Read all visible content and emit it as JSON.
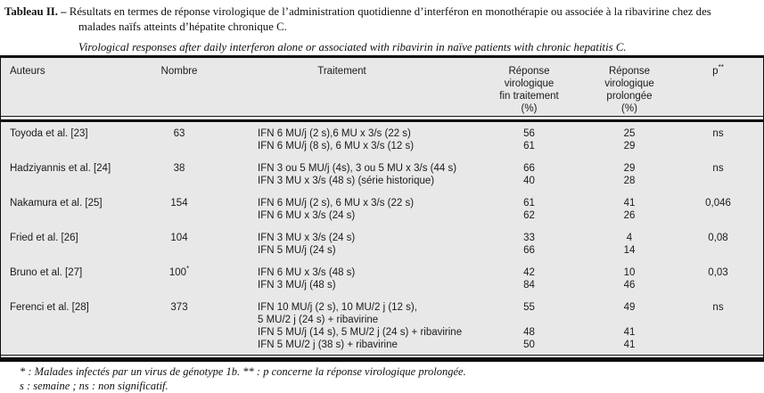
{
  "title": {
    "label": "Tableau II. –",
    "fr_line1": "Résultats en termes de réponse virologique de l’administration quotidienne d’interféron en monothérapie ou associée à la ribavirine chez des",
    "fr_line2": "malades naïfs atteints d’hépatite chronique C.",
    "en": "Virological responses after daily interferon alone or associated with ribavirin in naïve patients with chronic hepatitis C."
  },
  "table": {
    "headers": {
      "auteurs": "Auteurs",
      "nombre": "Nombre",
      "traitement": "Traitement",
      "fin": [
        "Réponse",
        "virologique",
        "fin traitement",
        "(%)"
      ],
      "prolongee": [
        "Réponse",
        "virologique",
        "prolongée",
        "(%)"
      ],
      "p": "p",
      "p_sup": "**"
    },
    "rows": [
      {
        "auteur": "Toyoda et al. [23]",
        "nombre": "63",
        "nombre_sup": "",
        "p": "ns",
        "lines": [
          {
            "t": "IFN 6 MU/j (2 s),6 MU x 3/s (22 s)",
            "fin": "56",
            "pro": "25"
          },
          {
            "t": "IFN 6 MU/j (8 s), 6 MU x 3/s (12 s)",
            "fin": "61",
            "pro": "29"
          }
        ]
      },
      {
        "auteur": "Hadziyannis et al. [24]",
        "nombre": "38",
        "nombre_sup": "",
        "p": "ns",
        "lines": [
          {
            "t": "IFN 3 ou 5 MU/j (4s), 3 ou 5 MU x 3/s (44 s)",
            "fin": "66",
            "pro": "29"
          },
          {
            "t": "IFN 3 MU x 3/s (48 s) (série historique)",
            "fin": "40",
            "pro": "28"
          }
        ]
      },
      {
        "auteur": "Nakamura et al. [25]",
        "nombre": "154",
        "nombre_sup": "",
        "p": "0,046",
        "lines": [
          {
            "t": "IFN 6 MU/j (2 s), 6 MU x 3/s (22 s)",
            "fin": "61",
            "pro": "41"
          },
          {
            "t": "IFN 6 MU x 3/s (24 s)",
            "fin": "62",
            "pro": "26"
          }
        ]
      },
      {
        "auteur": "Fried et al. [26]",
        "nombre": "104",
        "nombre_sup": "",
        "p": "0,08",
        "lines": [
          {
            "t": "IFN 3 MU x 3/s (24 s)",
            "fin": "33",
            "pro": "4"
          },
          {
            "t": "IFN 5 MU/j (24 s)",
            "fin": "66",
            "pro": "14"
          }
        ]
      },
      {
        "auteur": "Bruno et al. [27]",
        "nombre": "100",
        "nombre_sup": "*",
        "p": "0,03",
        "lines": [
          {
            "t": "IFN 6 MU x 3/s (48 s)",
            "fin": "42",
            "pro": "10"
          },
          {
            "t": "IFN 3 MU/j (48 s)",
            "fin": "84",
            "pro": "46"
          }
        ]
      },
      {
        "auteur": "Ferenci et al. [28]",
        "nombre": "373",
        "nombre_sup": "",
        "p": "ns",
        "lines": [
          {
            "t": "IFN 10 MU/j (2 s), 10 MU/2 j (12 s),",
            "fin": "55",
            "pro": "49"
          },
          {
            "t": "5 MU/2 j (24 s) + ribavirine",
            "fin": "",
            "pro": ""
          },
          {
            "t": "IFN 5 MU/j (14 s), 5 MU/2 j (24 s) + ribavirine",
            "fin": "48",
            "pro": "41"
          },
          {
            "t": "IFN 5 MU/2 j (38 s) + ribavirine",
            "fin": "50",
            "pro": "41"
          }
        ]
      }
    ]
  },
  "footnotes": {
    "line1": "* : Malades infectés par un virus de génotype 1b. ** : p concerne la réponse virologique prolongée.",
    "line2": "s : semaine ; ns : non significatif."
  },
  "colors": {
    "table_bg": "#e8e8e8",
    "rule": "#0d0d0d",
    "text": "#111111"
  }
}
